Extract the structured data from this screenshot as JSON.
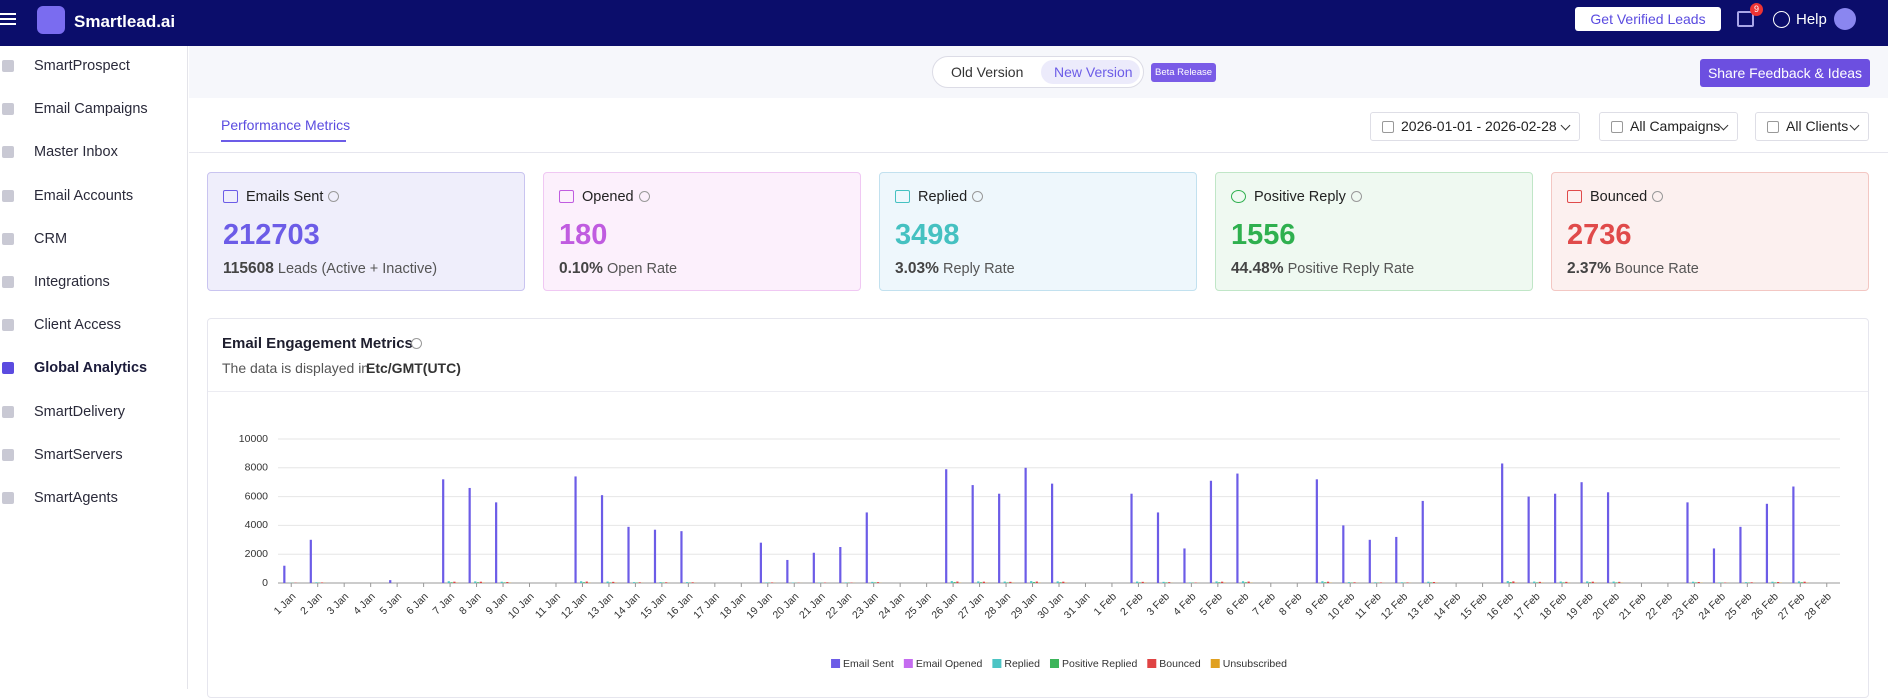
{
  "header": {
    "brand": "Smartlead.ai",
    "get_leads": "Get Verified Leads",
    "gift_badge": "9",
    "help": "Help"
  },
  "sidebar": [
    "SmartProspect",
    "Email Campaigns",
    "Master Inbox",
    "Email Accounts",
    "CRM",
    "Integrations",
    "Client Access",
    "Global Analytics",
    "SmartDelivery",
    "SmartServers",
    "SmartAgents"
  ],
  "version_toggle": {
    "old": "Old Version",
    "new": "New Version",
    "badge": "Beta Release"
  },
  "share_button": "Share Feedback & Ideas",
  "tab": "Performance Metrics",
  "filters": {
    "date": "2026-01-01 - 2026-02-28",
    "campaigns": "All Campaigns",
    "clients": "All Clients"
  },
  "cards": [
    {
      "label": "Emails Sent",
      "value": "212703",
      "sub_value": "115608",
      "sub_label": "Leads (Active + Inactive)"
    },
    {
      "label": "Opened",
      "value": "180",
      "sub_value": "0.10%",
      "sub_label": "Open Rate"
    },
    {
      "label": "Replied",
      "value": "3498",
      "sub_value": "3.03%",
      "sub_label": "Reply Rate"
    },
    {
      "label": "Positive Reply",
      "value": "1556",
      "sub_value": "44.48%",
      "sub_label": "Positive Reply Rate"
    },
    {
      "label": "Bounced",
      "value": "2736",
      "sub_value": "2.37%",
      "sub_label": "Bounce Rate"
    }
  ],
  "engagement": {
    "title": "Email Engagement Metrics",
    "note": "The data is displayed in",
    "timezone": "Etc/GMT(UTC)"
  },
  "chart_data": {
    "type": "bar",
    "categories": [
      "1 Jan",
      "2 Jan",
      "3 Jan",
      "4 Jan",
      "5 Jan",
      "6 Jan",
      "7 Jan",
      "8 Jan",
      "9 Jan",
      "10 Jan",
      "11 Jan",
      "12 Jan",
      "13 Jan",
      "14 Jan",
      "15 Jan",
      "16 Jan",
      "17 Jan",
      "18 Jan",
      "19 Jan",
      "20 Jan",
      "21 Jan",
      "22 Jan",
      "23 Jan",
      "24 Jan",
      "25 Jan",
      "26 Jan",
      "27 Jan",
      "28 Jan",
      "29 Jan",
      "30 Jan",
      "31 Jan",
      "1 Feb",
      "2 Feb",
      "3 Feb",
      "4 Feb",
      "5 Feb",
      "6 Feb",
      "7 Feb",
      "8 Feb",
      "9 Feb",
      "10 Feb",
      "11 Feb",
      "12 Feb",
      "13 Feb",
      "14 Feb",
      "15 Feb",
      "16 Feb",
      "17 Feb",
      "18 Feb",
      "19 Feb",
      "20 Feb",
      "21 Feb",
      "22 Feb",
      "23 Feb",
      "24 Feb",
      "25 Feb",
      "26 Feb",
      "27 Feb",
      "28 Feb"
    ],
    "series": [
      {
        "name": "Email Sent",
        "color": "#6c5ce7",
        "values": [
          1200,
          3000,
          0,
          0,
          200,
          0,
          7200,
          6600,
          5600,
          0,
          0,
          7400,
          6100,
          3900,
          3700,
          3600,
          0,
          0,
          2800,
          1600,
          2100,
          2500,
          4900,
          0,
          0,
          7900,
          6800,
          6200,
          8000,
          6900,
          0,
          0,
          6200,
          4900,
          2400,
          7100,
          7600,
          0,
          0,
          7200,
          4000,
          3000,
          3200,
          5700,
          0,
          0,
          8300,
          6000,
          6200,
          7000,
          6300,
          0,
          0,
          5600,
          2400,
          3900,
          5500,
          6700,
          0
        ]
      },
      {
        "name": "Email Opened",
        "color": "#c56cf0",
        "values": [
          0,
          0,
          0,
          0,
          0,
          0,
          0,
          0,
          0,
          0,
          0,
          0,
          0,
          0,
          0,
          0,
          0,
          0,
          0,
          0,
          0,
          0,
          0,
          0,
          0,
          0,
          0,
          0,
          0,
          0,
          0,
          0,
          0,
          0,
          0,
          0,
          0,
          0,
          0,
          0,
          0,
          0,
          0,
          0,
          0,
          0,
          0,
          0,
          0,
          0,
          0,
          0,
          0,
          0,
          0,
          0,
          0,
          0,
          0
        ]
      },
      {
        "name": "Replied",
        "color": "#4cc4c4",
        "values": [
          20,
          50,
          0,
          0,
          0,
          0,
          120,
          110,
          90,
          0,
          0,
          120,
          100,
          60,
          60,
          60,
          0,
          0,
          40,
          30,
          30,
          40,
          80,
          0,
          0,
          130,
          110,
          100,
          130,
          110,
          0,
          0,
          100,
          80,
          40,
          110,
          120,
          0,
          0,
          120,
          60,
          50,
          50,
          90,
          0,
          0,
          130,
          100,
          100,
          110,
          100,
          0,
          0,
          90,
          40,
          60,
          90,
          110,
          0
        ]
      },
      {
        "name": "Positive Replied",
        "color": "#3cb55a",
        "values": [
          10,
          20,
          0,
          0,
          0,
          0,
          50,
          50,
          40,
          0,
          0,
          50,
          40,
          30,
          30,
          30,
          0,
          0,
          20,
          10,
          10,
          20,
          40,
          0,
          0,
          60,
          50,
          40,
          60,
          50,
          0,
          0,
          40,
          40,
          20,
          50,
          50,
          0,
          0,
          50,
          30,
          20,
          20,
          40,
          0,
          0,
          60,
          40,
          40,
          50,
          40,
          0,
          0,
          40,
          20,
          30,
          40,
          50,
          0
        ]
      },
      {
        "name": "Bounced",
        "color": "#e04444",
        "values": [
          20,
          40,
          0,
          0,
          0,
          0,
          90,
          90,
          70,
          0,
          0,
          100,
          80,
          50,
          50,
          50,
          0,
          0,
          40,
          20,
          30,
          30,
          60,
          0,
          0,
          100,
          90,
          80,
          100,
          90,
          0,
          0,
          80,
          60,
          30,
          90,
          100,
          0,
          0,
          90,
          50,
          40,
          40,
          70,
          0,
          0,
          110,
          80,
          80,
          90,
          80,
          0,
          0,
          70,
          30,
          50,
          70,
          90,
          0
        ]
      },
      {
        "name": "Unsubscribed",
        "color": "#e0a020",
        "values": [
          5,
          10,
          0,
          0,
          0,
          0,
          20,
          20,
          20,
          0,
          0,
          20,
          20,
          10,
          10,
          10,
          0,
          0,
          10,
          5,
          5,
          10,
          10,
          0,
          0,
          20,
          20,
          20,
          20,
          20,
          0,
          0,
          20,
          10,
          10,
          20,
          20,
          0,
          0,
          20,
          10,
          10,
          10,
          20,
          0,
          0,
          20,
          20,
          20,
          20,
          20,
          0,
          0,
          20,
          10,
          10,
          20,
          20,
          0
        ]
      }
    ],
    "ylim": [
      0,
      10000
    ],
    "yticks": [
      0,
      2000,
      4000,
      6000,
      8000,
      10000
    ],
    "grid": true,
    "legend": "bottom"
  }
}
